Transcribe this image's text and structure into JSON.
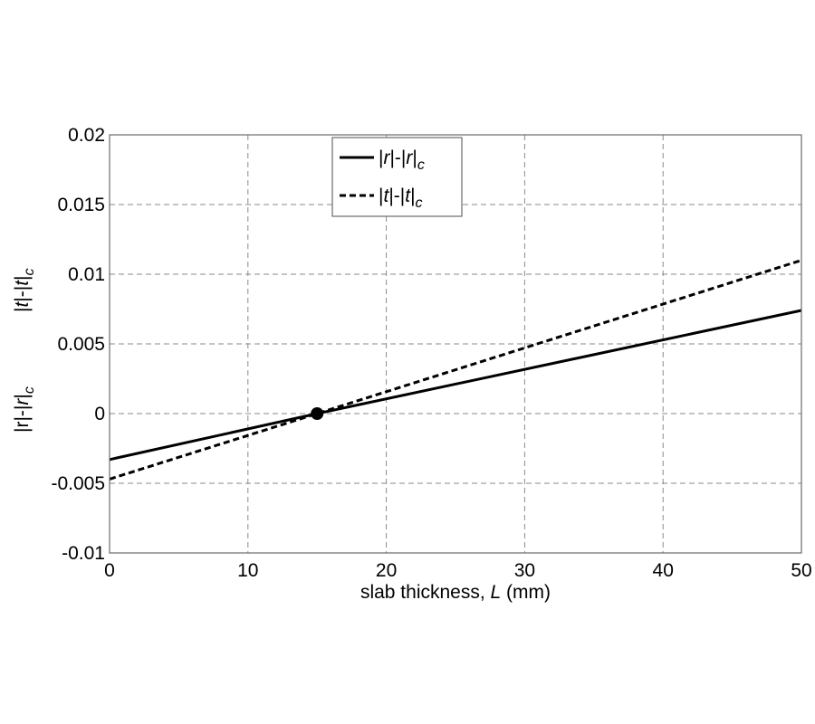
{
  "chart_data": {
    "type": "line",
    "title": "",
    "xlabel": {
      "text": "slab thickness, L (mm)",
      "parts": [
        {
          "t": "slab thickness, ",
          "i": false
        },
        {
          "t": "L",
          "i": true
        },
        {
          "t": " (mm)",
          "i": false
        }
      ]
    },
    "ylabel": {
      "lower": "|r|-|r|c",
      "upper": "|t|-|t|c"
    },
    "xlim": [
      0,
      50
    ],
    "ylim": [
      -0.01,
      0.02
    ],
    "xticks": [
      0,
      10,
      20,
      30,
      40,
      50
    ],
    "xtick_labels": [
      "0",
      "10",
      "20",
      "30",
      "40",
      "50"
    ],
    "yticks": [
      -0.01,
      -0.005,
      0,
      0.005,
      0.01,
      0.015,
      0.02
    ],
    "ytick_labels": [
      "-0.01",
      "-0.005",
      "0",
      "0.005",
      "0.01",
      "0.015",
      "0.02"
    ],
    "grid": true,
    "legend_position": "top-center",
    "series": [
      {
        "name": "|r|-|r|c",
        "style": "solid",
        "color": "#000000",
        "x": [
          0,
          15,
          50
        ],
        "y": [
          -0.0033,
          0.0,
          0.0074
        ]
      },
      {
        "name": "|t|-|t|c",
        "style": "dashed",
        "color": "#000000",
        "x": [
          0,
          15,
          50
        ],
        "y": [
          -0.0047,
          0.0,
          0.011
        ]
      }
    ],
    "markers": [
      {
        "x": 15,
        "y": 0.0
      }
    ]
  }
}
